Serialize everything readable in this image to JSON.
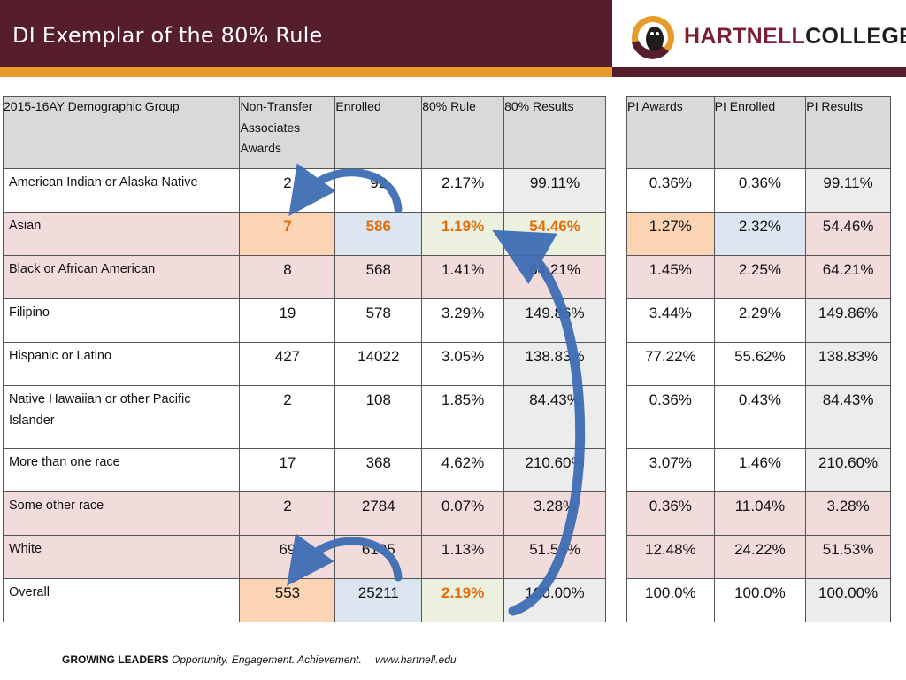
{
  "header": {
    "title": "DI Exemplar of the 80% Rule",
    "logo_part1": "HARTNELL",
    "logo_part2": "COLLEGE"
  },
  "table1": {
    "headers": [
      "2015-16AY Demographic Group",
      "Non-Transfer Associates Awards",
      "Enrolled",
      "80% Rule",
      "80% Results"
    ],
    "rows": [
      {
        "group": "American Indian or Alaska Native",
        "awards": "2",
        "enrolled": "92",
        "rule": "2.17%",
        "results": "99.11%"
      },
      {
        "group": "Asian",
        "awards": "7",
        "enrolled": "586",
        "rule": "1.19%",
        "results": "54.46%"
      },
      {
        "group": "Black or African American",
        "awards": "8",
        "enrolled": "568",
        "rule": "1.41%",
        "results": "64.21%"
      },
      {
        "group": "Filipino",
        "awards": "19",
        "enrolled": "578",
        "rule": "3.29%",
        "results": "149.86%"
      },
      {
        "group": "Hispanic or Latino",
        "awards": "427",
        "enrolled": "14022",
        "rule": "3.05%",
        "results": "138.83%"
      },
      {
        "group": "Native Hawaiian or other Pacific Islander",
        "awards": "2",
        "enrolled": "108",
        "rule": "1.85%",
        "results": "84.43%"
      },
      {
        "group": "More than one race",
        "awards": "17",
        "enrolled": "368",
        "rule": "4.62%",
        "results": "210.60%"
      },
      {
        "group": "Some other race",
        "awards": "2",
        "enrolled": "2784",
        "rule": "0.07%",
        "results": "3.28%"
      },
      {
        "group": "White",
        "awards": "69",
        "enrolled": "6105",
        "rule": "1.13%",
        "results": "51.53%"
      },
      {
        "group": "Overall",
        "awards": "553",
        "enrolled": "25211",
        "rule": "2.19%",
        "results": "100.00%"
      }
    ]
  },
  "table2": {
    "headers": [
      "PI Awards",
      "PI Enrolled",
      "PI Results"
    ],
    "rows": [
      {
        "awards": "0.36%",
        "enrolled": "0.36%",
        "results": "99.11%"
      },
      {
        "awards": "1.27%",
        "enrolled": "2.32%",
        "results": "54.46%"
      },
      {
        "awards": "1.45%",
        "enrolled": "2.25%",
        "results": "64.21%"
      },
      {
        "awards": "3.44%",
        "enrolled": "2.29%",
        "results": "149.86%"
      },
      {
        "awards": "77.22%",
        "enrolled": "55.62%",
        "results": "138.83%"
      },
      {
        "awards": "0.36%",
        "enrolled": "0.43%",
        "results": "84.43%"
      },
      {
        "awards": "3.07%",
        "enrolled": "1.46%",
        "results": "210.60%"
      },
      {
        "awards": "0.36%",
        "enrolled": "11.04%",
        "results": "3.28%"
      },
      {
        "awards": "12.48%",
        "enrolled": "24.22%",
        "results": "51.53%"
      },
      {
        "awards": "100.0%",
        "enrolled": "100.0%",
        "results": "100.00%"
      }
    ]
  },
  "footer": {
    "tagline_bold": "GROWING LEADERS",
    "tagline_italic": "Opportunity. Engagement. Achievement.",
    "url": "www.hartnell.edu"
  },
  "colors": {
    "header_bg": "#561e2d",
    "accent_orange": "#e89b2a",
    "highlight_text": "#e36c09"
  }
}
